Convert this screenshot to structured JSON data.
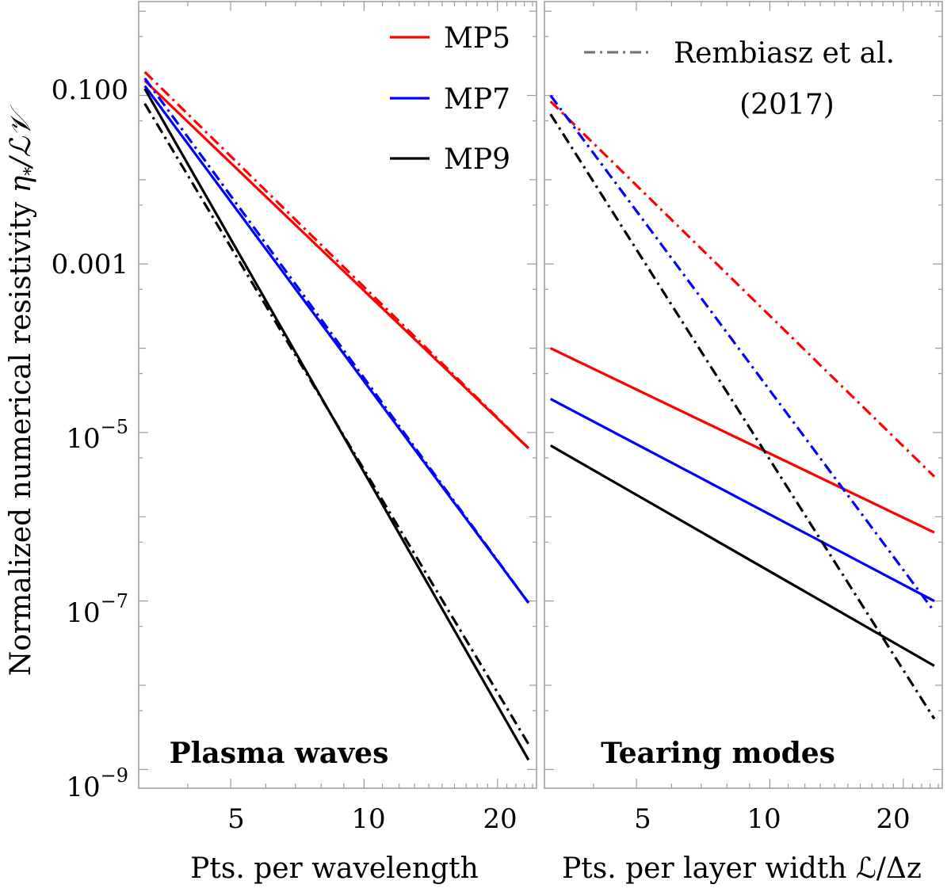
{
  "chart_data": [
    {
      "type": "line",
      "panel_title": "Plasma waves",
      "xlabel": "Pts. per wavelength",
      "ylabel": "Normalized numerical resistivity η*/ℒ𝒱",
      "x_scale": "log",
      "y_scale": "log",
      "xlim": [
        3.1,
        24.5
      ],
      "ylim": [
        6e-10,
        1.3
      ],
      "x_ticks": [
        5,
        10,
        20
      ],
      "y_ticks": [
        {
          "value": 0.1,
          "label": "0.100"
        },
        {
          "value": 0.001,
          "label": "0.001"
        },
        {
          "value": 1e-05,
          "label": "10⁻⁵"
        },
        {
          "value": 1e-07,
          "label": "10⁻⁷"
        },
        {
          "value": 1e-09,
          "label": "10⁻⁹"
        }
      ],
      "series": [
        {
          "name": "MP5",
          "color": "#ff0000",
          "style": "solid",
          "x": [
            3.2,
            23.5
          ],
          "y": [
            0.15,
            6.5e-06
          ]
        },
        {
          "name": "MP5",
          "color": "#ff0000",
          "style": "dashdot",
          "x": [
            3.2,
            23.5
          ],
          "y": [
            0.19,
            6.5e-06
          ]
        },
        {
          "name": "MP7",
          "color": "#0000ff",
          "style": "solid",
          "x": [
            3.2,
            23.5
          ],
          "y": [
            0.13,
            9.5e-08
          ]
        },
        {
          "name": "MP7",
          "color": "#0000ff",
          "style": "dashdot",
          "x": [
            3.2,
            23.5
          ],
          "y": [
            0.16,
            9.5e-08
          ]
        },
        {
          "name": "MP9",
          "color": "#000000",
          "style": "solid",
          "x": [
            3.2,
            23.5
          ],
          "y": [
            0.12,
            1.3e-09
          ]
        },
        {
          "name": "MP9",
          "color": "#000000",
          "style": "dashdot",
          "x": [
            3.2,
            23.5
          ],
          "y": [
            0.08,
            2e-09
          ]
        }
      ],
      "legend": [
        {
          "name": "MP5",
          "color": "#ff0000",
          "style": "solid"
        },
        {
          "name": "MP7",
          "color": "#0000ff",
          "style": "solid"
        },
        {
          "name": "MP9",
          "color": "#000000",
          "style": "solid"
        }
      ],
      "legend_placement": "top-right"
    },
    {
      "type": "line",
      "panel_title": "Tearing modes",
      "xlabel": "Pts. per layer width ℒ/Δz",
      "x_scale": "log",
      "y_scale": "log",
      "xlim": [
        3.1,
        24.5
      ],
      "ylim": [
        6e-10,
        1.3
      ],
      "x_ticks": [
        5,
        10,
        20
      ],
      "series": [
        {
          "name": "MP5",
          "color": "#ff0000",
          "style": "solid",
          "x": [
            3.2,
            23.5
          ],
          "y": [
            0.0001,
            6.5e-07
          ]
        },
        {
          "name": "MP5",
          "color": "#ff0000",
          "style": "dashdot",
          "x": [
            3.2,
            23.5
          ],
          "y": [
            0.085,
            3e-06
          ]
        },
        {
          "name": "MP7",
          "color": "#0000ff",
          "style": "solid",
          "x": [
            3.2,
            23.5
          ],
          "y": [
            2.5e-05,
            1e-07
          ]
        },
        {
          "name": "MP7",
          "color": "#0000ff",
          "style": "dashdot",
          "x": [
            3.2,
            23.5
          ],
          "y": [
            0.1,
            7.5e-08
          ]
        },
        {
          "name": "MP9",
          "color": "#000000",
          "style": "solid",
          "x": [
            3.2,
            23.5
          ],
          "y": [
            7e-06,
            1.7e-08
          ]
        },
        {
          "name": "MP9",
          "color": "#000000",
          "style": "dashdot",
          "x": [
            3.2,
            23.5
          ],
          "y": [
            0.06,
            4e-09
          ]
        }
      ],
      "legend": [
        {
          "name": "Rembiasz et al. (2017)",
          "color": "#777777",
          "style": "dashdot"
        }
      ],
      "legend_placement": "top-right"
    }
  ],
  "legend_left": {
    "entries": [
      {
        "label": "MP5",
        "color": "#ff0000"
      },
      {
        "label": "MP7",
        "color": "#0000ff"
      },
      {
        "label": "MP9",
        "color": "#000000"
      }
    ]
  },
  "legend_right": {
    "line1": "Rembiasz et al.",
    "line2": "(2017)",
    "color": "#777777"
  },
  "labels": {
    "ylabel_text": "Normalized numerical resistivity ",
    "ylabel_eta": "η",
    "ylabel_star": "*",
    "ylabel_ratio": "/ℒ𝒱",
    "xlabel_left": "Pts. per wavelength",
    "xlabel_right": "Pts. per layer width ℒ/Δz",
    "title_left": "Plasma waves",
    "title_right": "Tearing modes"
  },
  "ticks": {
    "y_labels": {
      "tick_01": "0.100",
      "tick_0001": "0.001",
      "tick_1e5_base": "10",
      "tick_1e5_exp": "−5",
      "tick_1e7_base": "10",
      "tick_1e7_exp": "−7",
      "tick_1e9_base": "10",
      "tick_1e9_exp": "−9"
    },
    "x_labels": {
      "five": "5",
      "ten": "10",
      "twenty": "20"
    }
  }
}
